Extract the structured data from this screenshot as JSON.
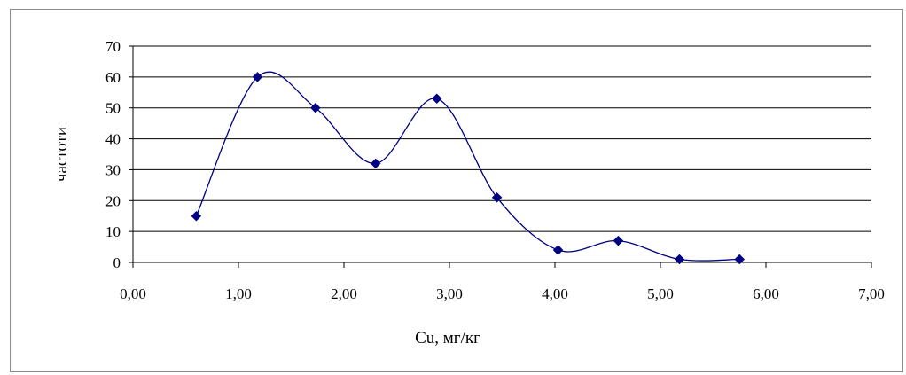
{
  "chart_data": {
    "type": "scatter",
    "xlabel": "Cu, мг/кг",
    "ylabel": "частоти",
    "xlim": [
      0,
      7
    ],
    "ylim": [
      0,
      70
    ],
    "x_ticks": [
      "0,00",
      "1,00",
      "2,00",
      "3,00",
      "4,00",
      "5,00",
      "6,00",
      "7,00"
    ],
    "y_ticks": [
      "0",
      "10",
      "20",
      "30",
      "40",
      "50",
      "60",
      "70"
    ],
    "grid": "horizontal",
    "line": "smooth",
    "series": [
      {
        "x": [
          0.6,
          1.18,
          1.73,
          2.3,
          2.88,
          3.45,
          4.03,
          4.6,
          5.18,
          5.75
        ],
        "y": [
          15,
          60,
          50,
          32,
          53,
          21,
          4,
          7,
          1,
          1
        ]
      }
    ],
    "colors": {
      "series": "#000080",
      "grid": "#000000",
      "axis": "#000000"
    }
  }
}
